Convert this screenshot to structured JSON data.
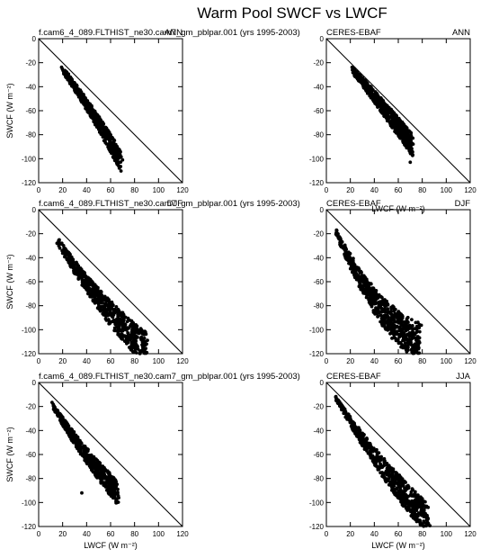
{
  "figure": {
    "title": "Warm Pool SWCF vs LWCF"
  },
  "chart_data": [
    {
      "type": "scatter",
      "id": "model-ann",
      "left_title": "f.cam6_4_089.FLTHIST_ne30.cam7_gm_pblpar.001 (yrs 1995-2003)",
      "right_title": "ANN",
      "xlabel": "",
      "ylabel": "SWCF (W m⁻²)",
      "xlim": [
        0,
        120
      ],
      "ylim": [
        -120,
        0
      ],
      "x_ticks": [
        0,
        20,
        40,
        60,
        80,
        100,
        120
      ],
      "y_ticks": [
        0,
        -20,
        -40,
        -60,
        -80,
        -100,
        -120
      ],
      "reference_line": [
        [
          0,
          0
        ],
        [
          120,
          -120
        ]
      ],
      "cloud": {
        "count": 480,
        "seed": 11,
        "x_min": 20,
        "x_max": 68,
        "ratio_start": -1.25,
        "ratio_end": -1.45,
        "spread": 0.18,
        "extreme_point": [
          70,
          -101
        ]
      }
    },
    {
      "type": "scatter",
      "id": "obs-ann",
      "left_title": "CERES-EBAF",
      "right_title": "ANN",
      "xlabel": "",
      "ylabel": "",
      "xlim": [
        0,
        120
      ],
      "ylim": [
        -120,
        0
      ],
      "x_ticks": [
        0,
        20,
        40,
        60,
        80,
        100,
        120
      ],
      "y_ticks": [
        0,
        -20,
        -40,
        -60,
        -80,
        -100,
        -120
      ],
      "reference_line": [
        [
          0,
          0
        ],
        [
          120,
          -120
        ]
      ],
      "cloud": {
        "count": 600,
        "seed": 23,
        "x_min": 22,
        "x_max": 72,
        "ratio_start": -1.15,
        "ratio_end": -1.2,
        "spread": 0.22,
        "extreme_point": [
          70,
          -103
        ]
      }
    },
    {
      "type": "scatter",
      "id": "model-djf",
      "left_title": "f.cam6_4_089.FLTHIST_ne30.cam7_gm_pblpar.001 (yrs 1995-2003)",
      "right_title": "DJF",
      "xlabel": "",
      "ylabel": "SWCF (W m⁻²)",
      "xlim": [
        0,
        120
      ],
      "ylim": [
        -120,
        0
      ],
      "x_ticks": [
        0,
        20,
        40,
        60,
        80,
        100,
        120
      ],
      "y_ticks": [
        0,
        -20,
        -40,
        -60,
        -80,
        -100,
        -120
      ],
      "reference_line": [
        [
          0,
          0
        ],
        [
          120,
          -120
        ]
      ],
      "cloud": {
        "count": 650,
        "seed": 37,
        "x_min": 15,
        "x_max": 90,
        "ratio_start": -1.6,
        "ratio_end": -1.25,
        "spread": 0.25,
        "extreme_point": [
          90,
          -112
        ]
      }
    },
    {
      "type": "scatter",
      "id": "obs-djf",
      "left_title": "CERES-EBAF",
      "right_title": "DJF",
      "xlabel": "LWCF (W m⁻²)",
      "ylabel": "",
      "xlim": [
        0,
        120
      ],
      "ylim": [
        -120,
        0
      ],
      "x_ticks": [
        0,
        20,
        40,
        60,
        80,
        100,
        120
      ],
      "y_ticks": [
        0,
        -20,
        -40,
        -60,
        -80,
        -100,
        -120
      ],
      "reference_line": [
        [
          0,
          0
        ],
        [
          120,
          -120
        ]
      ],
      "cloud": {
        "count": 650,
        "seed": 53,
        "x_min": 8,
        "x_max": 78,
        "ratio_start": -2.2,
        "ratio_end": -1.35,
        "spread": 0.3,
        "extreme_point": [
          72,
          -115
        ]
      }
    },
    {
      "type": "scatter",
      "id": "model-jja",
      "left_title": "f.cam6_4_089.FLTHIST_ne30.cam7_gm_pblpar.001 (yrs 1995-2003)",
      "right_title": "",
      "xlabel": "LWCF (W m⁻²)",
      "ylabel": "SWCF (W m⁻²)",
      "xlim": [
        0,
        120
      ],
      "ylim": [
        -120,
        0
      ],
      "x_ticks": [
        0,
        20,
        40,
        60,
        80,
        100,
        120
      ],
      "y_ticks": [
        0,
        -20,
        -40,
        -60,
        -80,
        -100,
        -120
      ],
      "reference_line": [
        [
          0,
          0
        ],
        [
          120,
          -120
        ]
      ],
      "cloud": {
        "count": 520,
        "seed": 71,
        "x_min": 12,
        "x_max": 66,
        "ratio_start": -1.6,
        "ratio_end": -1.35,
        "spread": 0.22,
        "extreme_point": [
          36,
          -92
        ]
      }
    },
    {
      "type": "scatter",
      "id": "obs-jja",
      "left_title": "CERES-EBAF",
      "right_title": "JJA",
      "xlabel": "LWCF (W m⁻²)",
      "ylabel": "",
      "xlim": [
        0,
        120
      ],
      "ylim": [
        -120,
        0
      ],
      "x_ticks": [
        0,
        20,
        40,
        60,
        80,
        100,
        120
      ],
      "y_ticks": [
        0,
        -20,
        -40,
        -60,
        -80,
        -100,
        -120
      ],
      "reference_line": [
        [
          0,
          0
        ],
        [
          120,
          -120
        ]
      ],
      "cloud": {
        "count": 620,
        "seed": 89,
        "x_min": 8,
        "x_max": 85,
        "ratio_start": -1.6,
        "ratio_end": -1.3,
        "spread": 0.25,
        "extreme_point": [
          84,
          -111
        ]
      }
    }
  ]
}
